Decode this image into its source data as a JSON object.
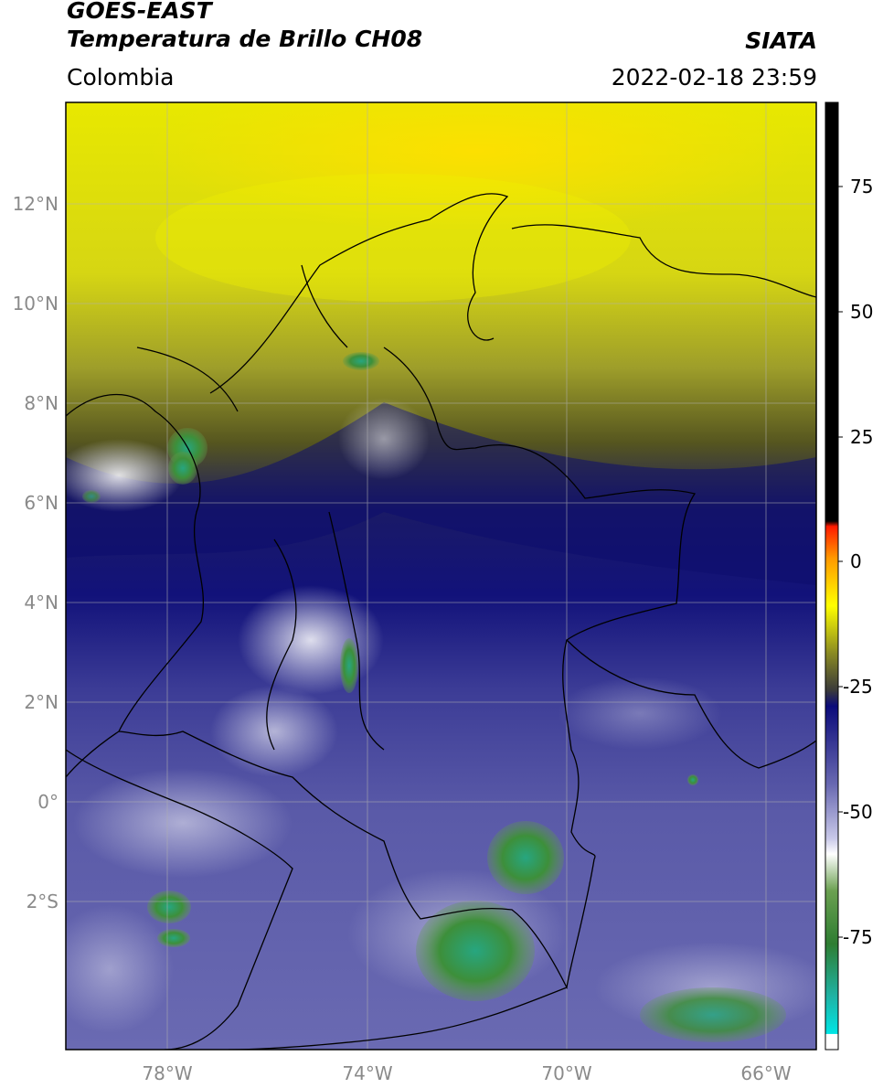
{
  "header": {
    "satellite": "GOES-EAST",
    "product": "Temperatura de Brillo CH08",
    "region": "Colombia",
    "organization": "SIATA",
    "datetime": "2022-02-18 23:59"
  },
  "map": {
    "lat_labels": [
      "12°N",
      "10°N",
      "8°N",
      "6°N",
      "4°N",
      "2°N",
      "0°",
      "2°S"
    ],
    "lon_labels": [
      "78°W",
      "74°W",
      "70°W",
      "66°W"
    ]
  },
  "colorbar": {
    "tick_labels": [
      "75",
      "50",
      "25",
      "0",
      "-25",
      "-50",
      "-75"
    ],
    "colors": {
      "black": "#000000",
      "red": "#ff1a00",
      "orange": "#ff9900",
      "yellow": "#ffff00",
      "olive": "#6b6b1f",
      "navy": "#0a0a7a",
      "lavender": "#b8b8de",
      "white": "#ffffff",
      "green": "#2e7d32",
      "teal": "#1fb3a5",
      "cyan": "#00e5e5"
    }
  }
}
